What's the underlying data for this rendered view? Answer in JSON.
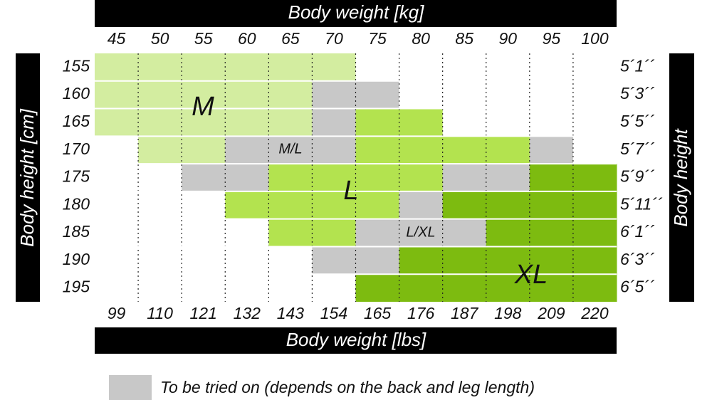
{
  "top_header": {
    "title": "Body weight [kg]",
    "ticks": [
      45,
      50,
      55,
      60,
      65,
      70,
      75,
      80,
      85,
      90,
      95,
      100
    ]
  },
  "bottom_header": {
    "title": "Body weight [lbs]",
    "ticks": [
      99,
      110,
      121,
      132,
      143,
      154,
      165,
      176,
      187,
      198,
      209,
      220
    ]
  },
  "left_axis": {
    "title": "Body height [cm]",
    "ticks": [
      155,
      160,
      165,
      170,
      175,
      180,
      185,
      190,
      195
    ]
  },
  "right_axis": {
    "title": "Body height",
    "ticks": [
      "5´1´´",
      "5´3´´",
      "5´5´´",
      "5´7´´",
      "5´9´´",
      "5´11´´",
      "6´1´´",
      "6´3´´",
      "6´5´´"
    ]
  },
  "size_labels": [
    "M",
    "M/L",
    "L",
    "L/XL",
    "XL"
  ],
  "legend": {
    "text": "To be tried on (depends on the back and leg length)"
  }
}
